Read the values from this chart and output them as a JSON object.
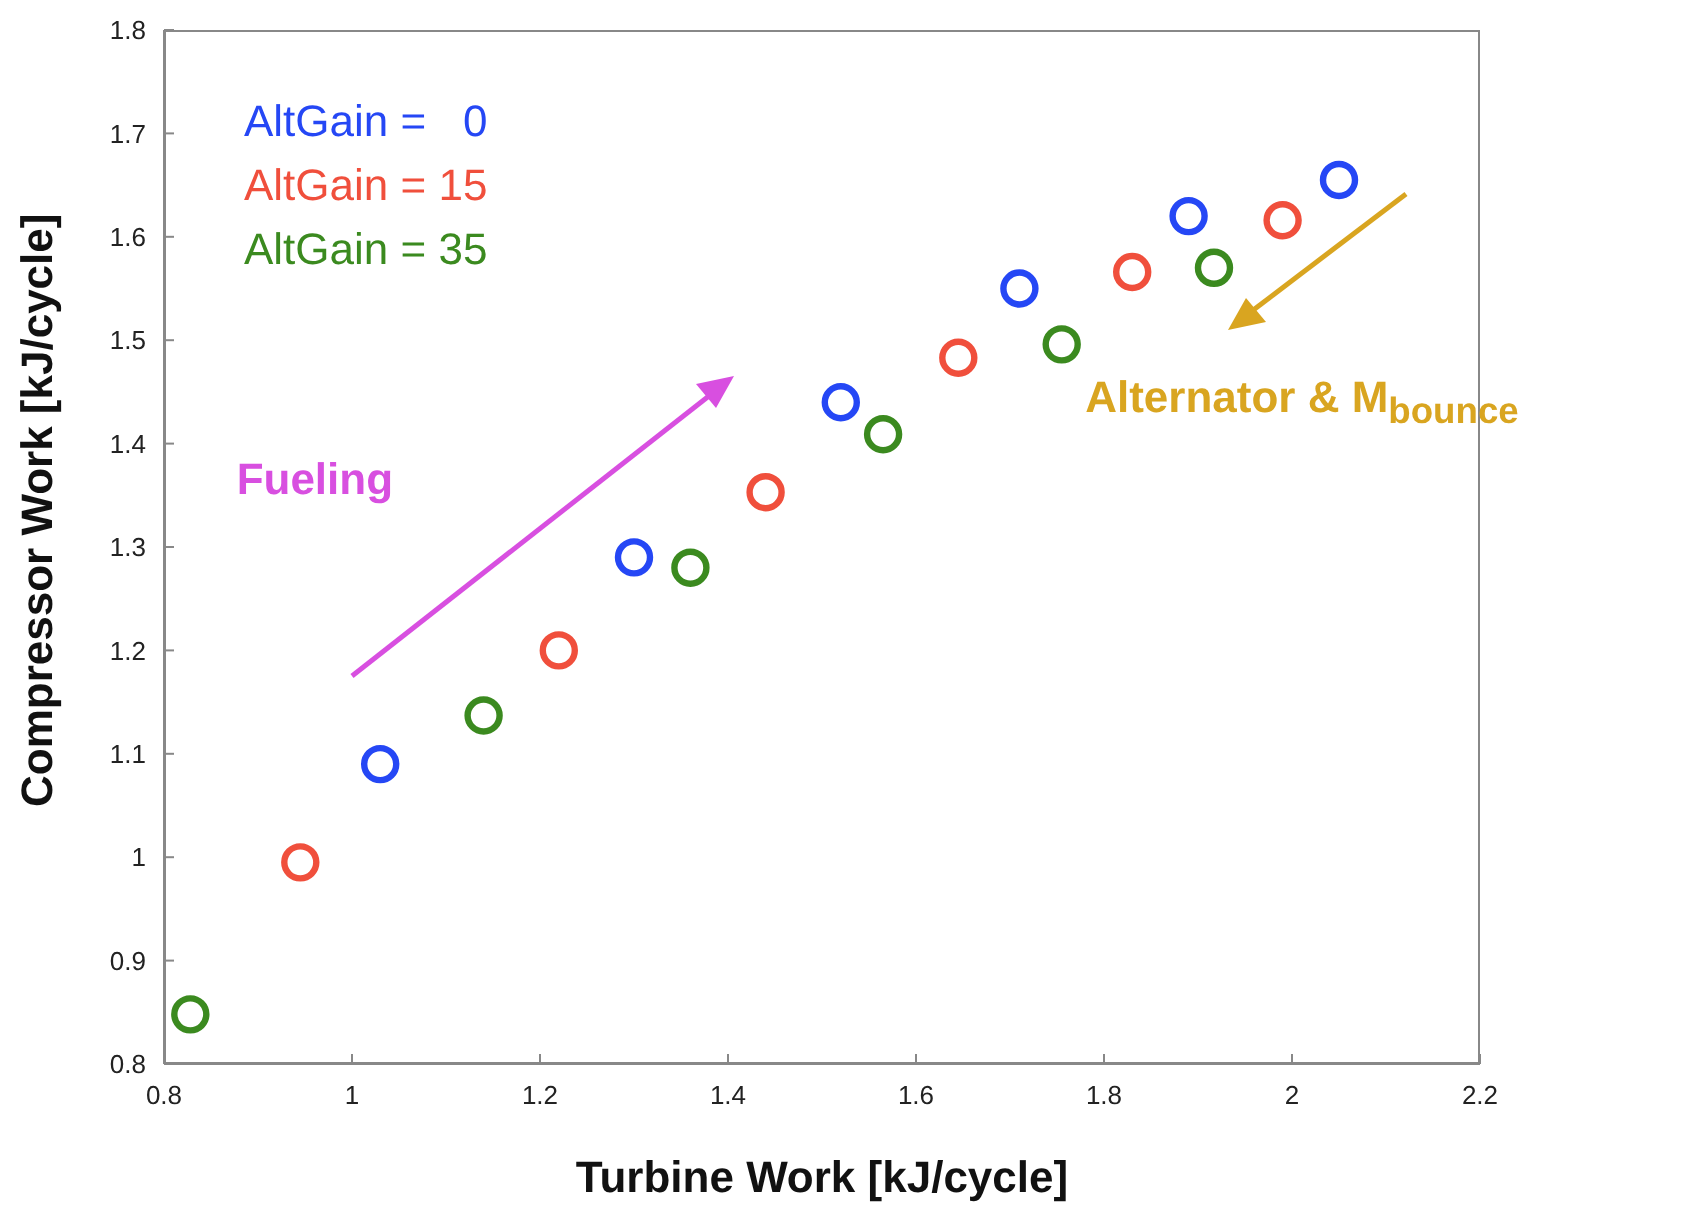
{
  "chart_data": {
    "type": "scatter",
    "xlabel": "Turbine Work [kJ/cycle]",
    "ylabel": "Compressor Work [kJ/cycle]",
    "xlim": [
      0.8,
      2.2
    ],
    "xticks": [
      0.8,
      1,
      1.2,
      1.4,
      1.6,
      1.8,
      2,
      2.2
    ],
    "ylim": [
      0.8,
      1.8
    ],
    "yticks": [
      0.8,
      0.9,
      1,
      1.1,
      1.2,
      1.3,
      1.4,
      1.5,
      1.6,
      1.7,
      1.8
    ],
    "grid": false,
    "legend": "top left",
    "marker": "circle",
    "annotations": [
      "Fueling",
      "Alternator & M$_{bounce}$"
    ],
    "series": [
      {
        "name": "AltGain =   0",
        "color": "#2547f5",
        "x": [
          1.03,
          1.3,
          1.52,
          1.71,
          1.89,
          2.05
        ],
        "values": [
          1.09,
          1.29,
          1.44,
          1.55,
          1.62,
          1.655
        ]
      },
      {
        "name": "AltGain = 15",
        "color": "#f04f3c",
        "x": [
          0.945,
          1.22,
          1.44,
          1.645,
          1.83,
          1.99
        ],
        "values": [
          0.995,
          1.2,
          1.353,
          1.483,
          1.566,
          1.616
        ]
      },
      {
        "name": "AltGain = 35",
        "color": "#3b8a1f",
        "x": [
          0.828,
          1.14,
          1.36,
          1.565,
          1.755,
          1.917
        ],
        "values": [
          0.848,
          1.137,
          1.28,
          1.409,
          1.496,
          1.57
        ]
      }
    ]
  }
}
